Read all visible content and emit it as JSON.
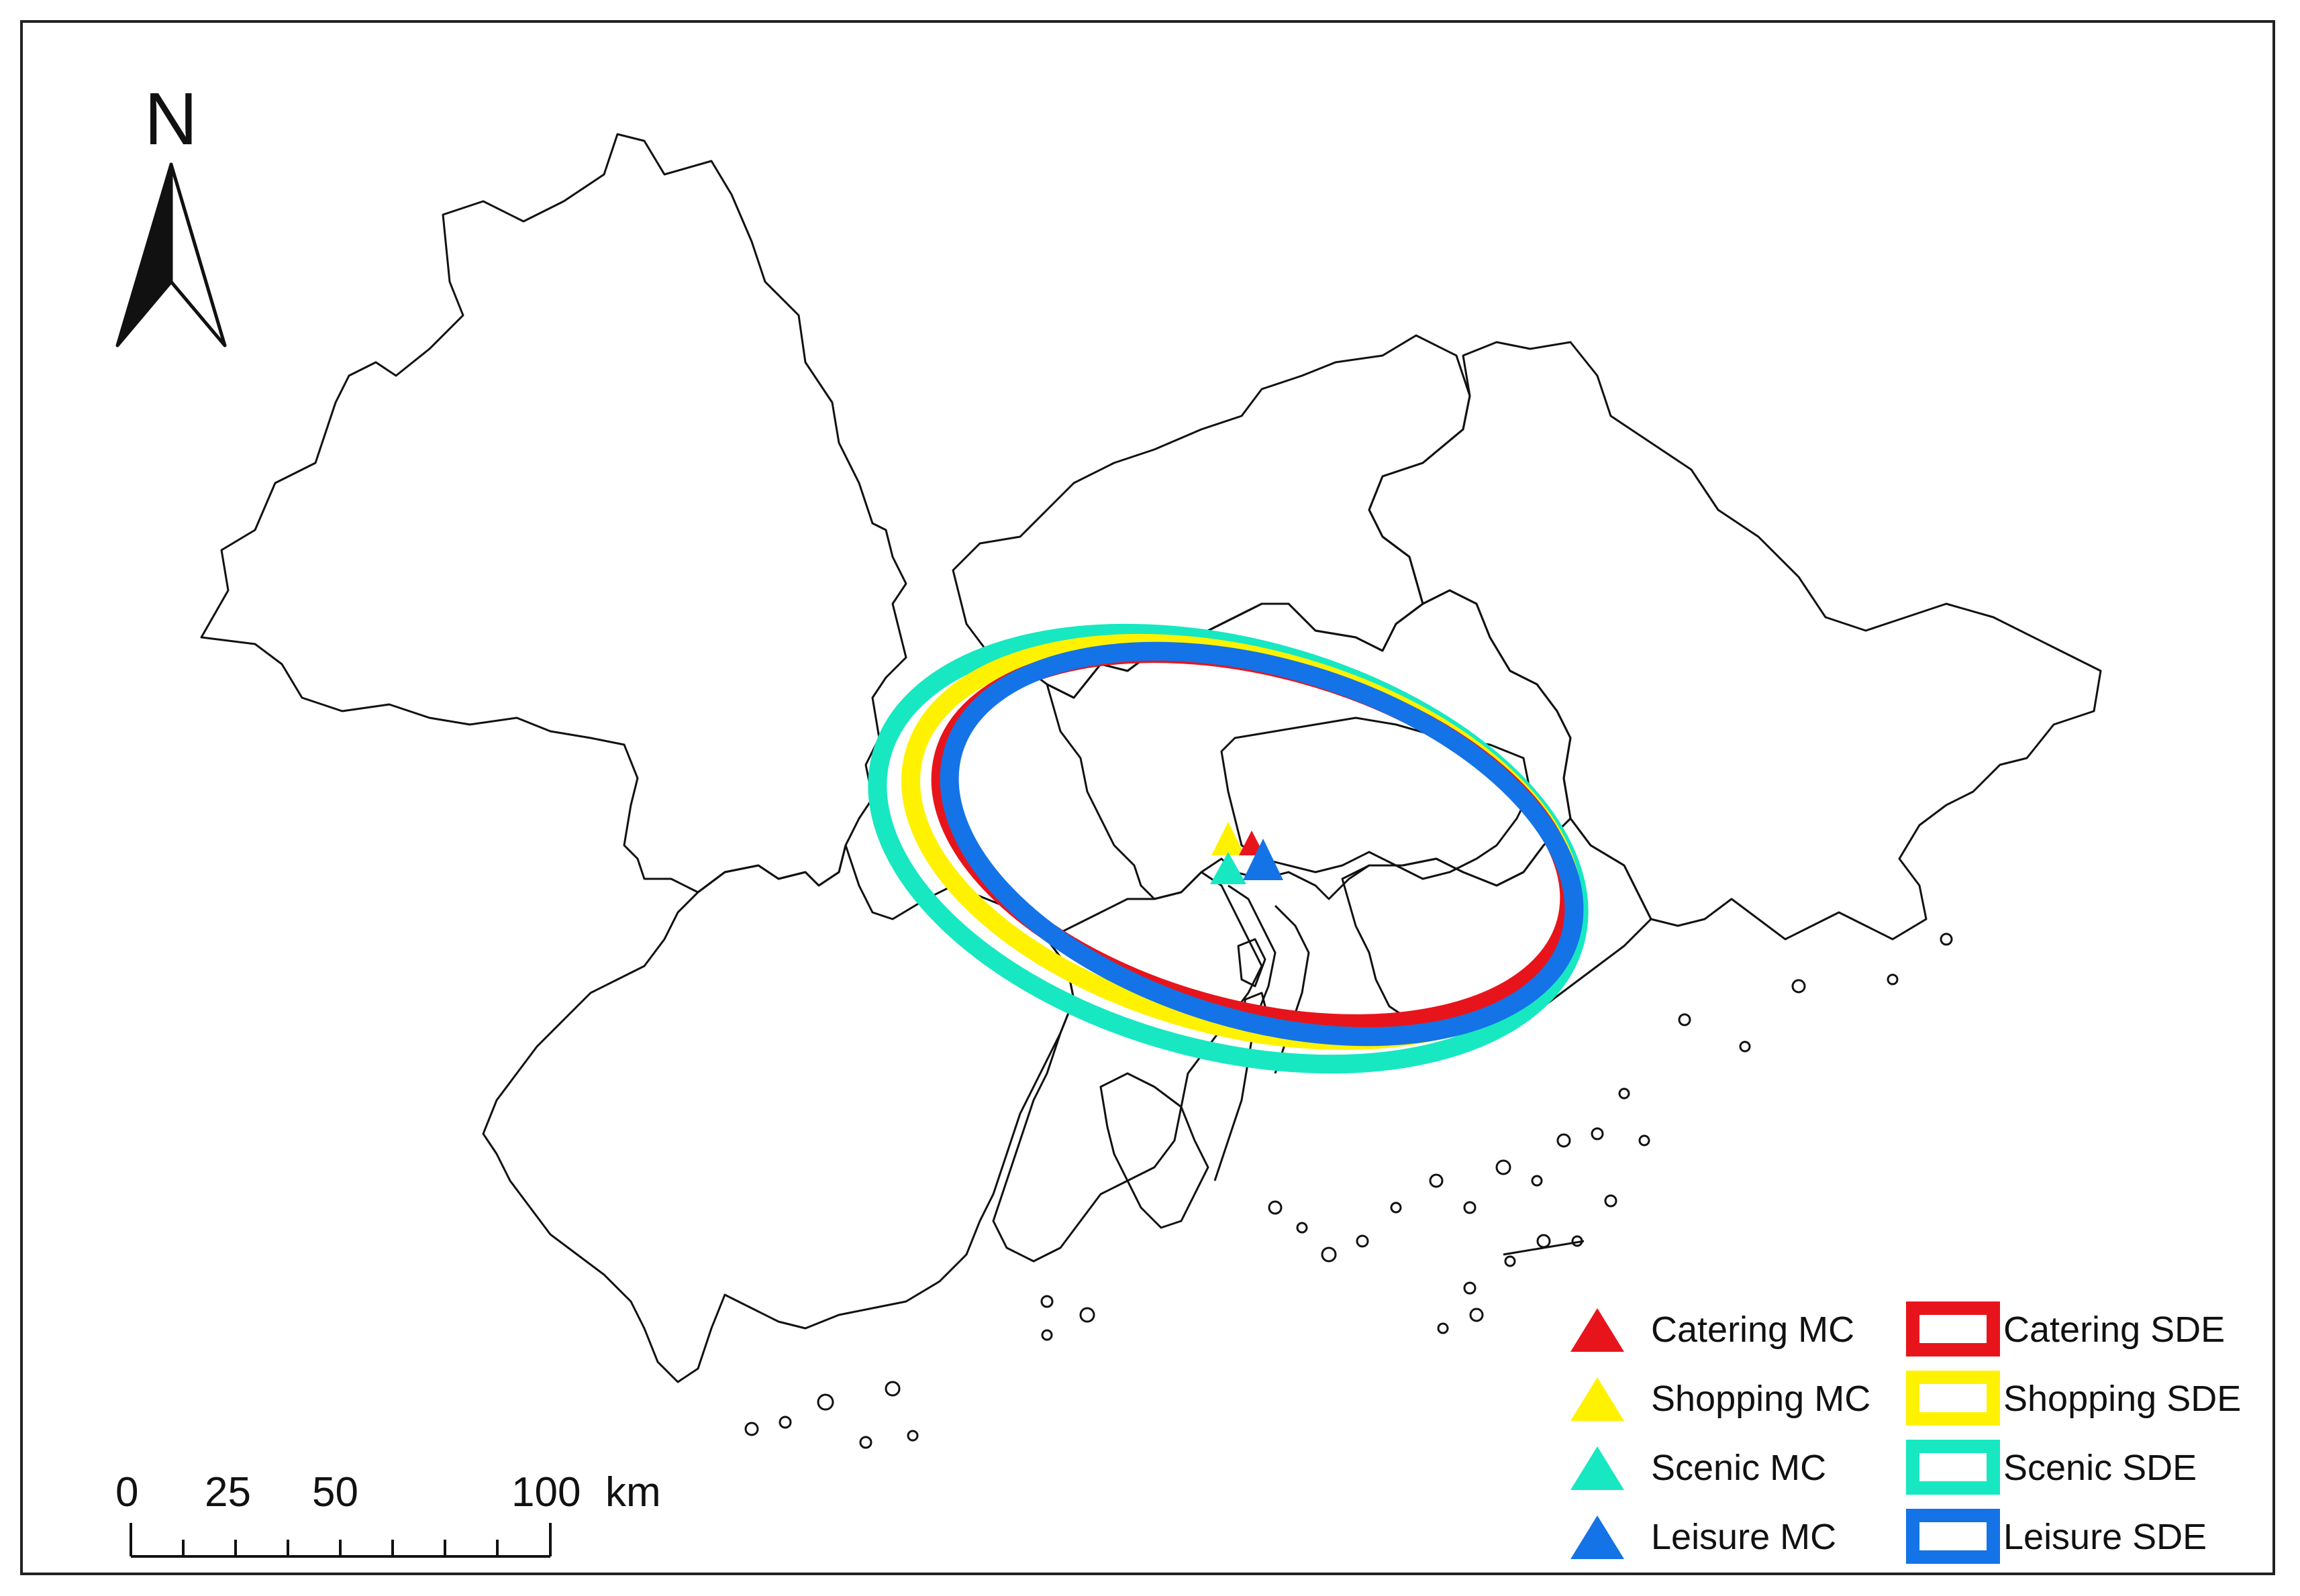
{
  "north_arrow": {
    "label": "N"
  },
  "scale_bar": {
    "ticks": [
      "0",
      "25",
      "50",
      "100"
    ],
    "unit": "km"
  },
  "legend": {
    "items": [
      {
        "key": "catering_mc",
        "label": "Catering MC",
        "symbol": "triangle",
        "color": "#e8141b"
      },
      {
        "key": "shopping_mc",
        "label": "Shopping MC",
        "symbol": "triangle",
        "color": "#fff200"
      },
      {
        "key": "scenic_mc",
        "label": "Scenic MC",
        "symbol": "triangle",
        "color": "#17e8c2"
      },
      {
        "key": "leisure_mc",
        "label": "Leisure MC",
        "symbol": "triangle",
        "color": "#1473e6"
      },
      {
        "key": "catering_sde",
        "label": "Catering SDE",
        "symbol": "ellipse",
        "color": "#e8141b"
      },
      {
        "key": "shopping_sde",
        "label": "Shopping SDE",
        "symbol": "ellipse",
        "color": "#fff200"
      },
      {
        "key": "scenic_sde",
        "label": "Scenic SDE",
        "symbol": "ellipse",
        "color": "#17e8c2"
      },
      {
        "key": "leisure_sde",
        "label": "Leisure SDE",
        "symbol": "ellipse",
        "color": "#1473e6"
      }
    ]
  },
  "colors": {
    "catering": "#e8141b",
    "shopping": "#fff200",
    "scenic": "#17e8c2",
    "leisure": "#1473e6",
    "boundary": "#111111"
  }
}
